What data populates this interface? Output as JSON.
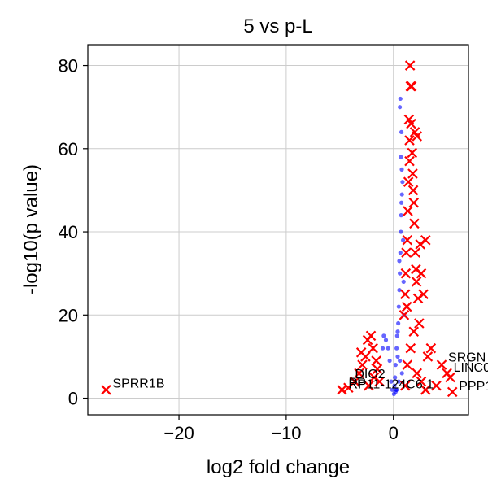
{
  "chart_data": {
    "type": "scatter",
    "title": "5 vs p-L",
    "xlabel": "log2 fold change",
    "ylabel": "-log10(p value)",
    "xlim": [
      -28.5,
      7
    ],
    "ylim": [
      -4,
      85
    ],
    "xticks": [
      -20,
      -10,
      0
    ],
    "xtick_labels": [
      "−20",
      "−10",
      "0"
    ],
    "yticks": [
      0,
      20,
      40,
      60,
      80
    ],
    "ytick_labels": [
      "0",
      "20",
      "40",
      "60",
      "80"
    ],
    "grid": true,
    "colors": {
      "significant": "#ff0000",
      "non_significant": "#0000ff"
    },
    "series": [
      {
        "marker": "x",
        "color": "#ff0000",
        "points": [
          [
            -26.8,
            2
          ],
          [
            -4.8,
            2
          ],
          [
            -4.2,
            2.5
          ],
          [
            -3.6,
            4
          ],
          [
            -3.2,
            6
          ],
          [
            -3.0,
            11
          ],
          [
            -2.9,
            8
          ],
          [
            -2.6,
            10
          ],
          [
            -2.4,
            14
          ],
          [
            -2.3,
            3
          ],
          [
            -2.1,
            15
          ],
          [
            -1.9,
            12
          ],
          [
            -1.8,
            5
          ],
          [
            -1.6,
            9
          ],
          [
            -1.5,
            7
          ],
          [
            -1.3,
            4
          ],
          [
            1.0,
            20
          ],
          [
            1.1,
            25
          ],
          [
            1.15,
            30
          ],
          [
            1.2,
            35
          ],
          [
            1.25,
            22
          ],
          [
            1.3,
            38
          ],
          [
            1.35,
            45
          ],
          [
            1.4,
            52
          ],
          [
            1.45,
            67
          ],
          [
            1.5,
            62
          ],
          [
            1.5,
            57
          ],
          [
            1.55,
            80
          ],
          [
            1.6,
            75
          ],
          [
            1.65,
            66
          ],
          [
            1.7,
            75
          ],
          [
            1.75,
            59
          ],
          [
            1.8,
            54
          ],
          [
            1.85,
            50
          ],
          [
            1.9,
            47
          ],
          [
            1.95,
            42
          ],
          [
            2.0,
            64
          ],
          [
            2.05,
            35
          ],
          [
            2.1,
            31
          ],
          [
            2.15,
            28
          ],
          [
            2.2,
            63
          ],
          [
            2.3,
            24
          ],
          [
            2.4,
            18
          ],
          [
            2.5,
            37
          ],
          [
            2.6,
            30
          ],
          [
            2.8,
            25
          ],
          [
            3.0,
            38
          ],
          [
            3.2,
            10
          ],
          [
            3.5,
            12
          ],
          [
            4.0,
            3
          ],
          [
            4.5,
            8
          ],
          [
            5.0,
            6
          ],
          [
            5.3,
            5
          ],
          [
            5.5,
            1.5
          ],
          [
            1.1,
            3
          ],
          [
            1.3,
            8
          ],
          [
            1.6,
            12
          ],
          [
            1.9,
            16
          ],
          [
            2.2,
            6
          ],
          [
            2.6,
            4
          ],
          [
            3.0,
            2
          ]
        ]
      },
      {
        "marker": "o",
        "color": "#0000ff",
        "points": [
          [
            0.05,
            1
          ],
          [
            0.1,
            3
          ],
          [
            0.15,
            5
          ],
          [
            0.2,
            8
          ],
          [
            0.25,
            2
          ],
          [
            0.3,
            12
          ],
          [
            0.35,
            15
          ],
          [
            0.4,
            10
          ],
          [
            0.45,
            18
          ],
          [
            0.5,
            22
          ],
          [
            0.55,
            26
          ],
          [
            0.6,
            30
          ],
          [
            0.65,
            35
          ],
          [
            0.7,
            40
          ],
          [
            0.72,
            44
          ],
          [
            0.75,
            47
          ],
          [
            0.8,
            49
          ],
          [
            0.85,
            52
          ],
          [
            0.7,
            58
          ],
          [
            0.65,
            72
          ],
          [
            0.75,
            64
          ],
          [
            0.6,
            70
          ],
          [
            0.9,
            38
          ],
          [
            0.95,
            28
          ],
          [
            1.0,
            20
          ],
          [
            -0.1,
            2
          ],
          [
            -0.2,
            4
          ],
          [
            -0.35,
            9
          ],
          [
            -0.5,
            12
          ],
          [
            -0.7,
            14
          ],
          [
            -0.9,
            15
          ],
          [
            -1.0,
            12
          ],
          [
            0.2,
            1.5
          ],
          [
            0.5,
            4
          ],
          [
            0.8,
            6
          ],
          [
            0.3,
            2
          ],
          [
            0.6,
            9
          ],
          [
            0.4,
            16
          ],
          [
            0.55,
            33
          ],
          [
            0.78,
            55
          ]
        ]
      }
    ],
    "annotations": [
      {
        "text": "SPRR1B",
        "x": -26.8,
        "y": 2,
        "dx": 8,
        "dy": -3
      },
      {
        "text": "DIO2",
        "x": -4.2,
        "y": 2.5,
        "dx": 8,
        "dy": -12
      },
      {
        "text": "RP11-124C6.1",
        "x": -4.8,
        "y": 2,
        "dx": 8,
        "dy": -2
      },
      {
        "text": "PP",
        "x": -4.8,
        "y": 2,
        "dx": 8,
        "dy": -4
      },
      {
        "text": "SRGN",
        "x": 4.5,
        "y": 8,
        "dx": 8,
        "dy": -4
      },
      {
        "text": "LINC0",
        "x": 5.0,
        "y": 6,
        "dx": 8,
        "dy": -2
      },
      {
        "text": "PPP1",
        "x": 5.5,
        "y": 1.5,
        "dx": 8,
        "dy": -2
      }
    ]
  }
}
